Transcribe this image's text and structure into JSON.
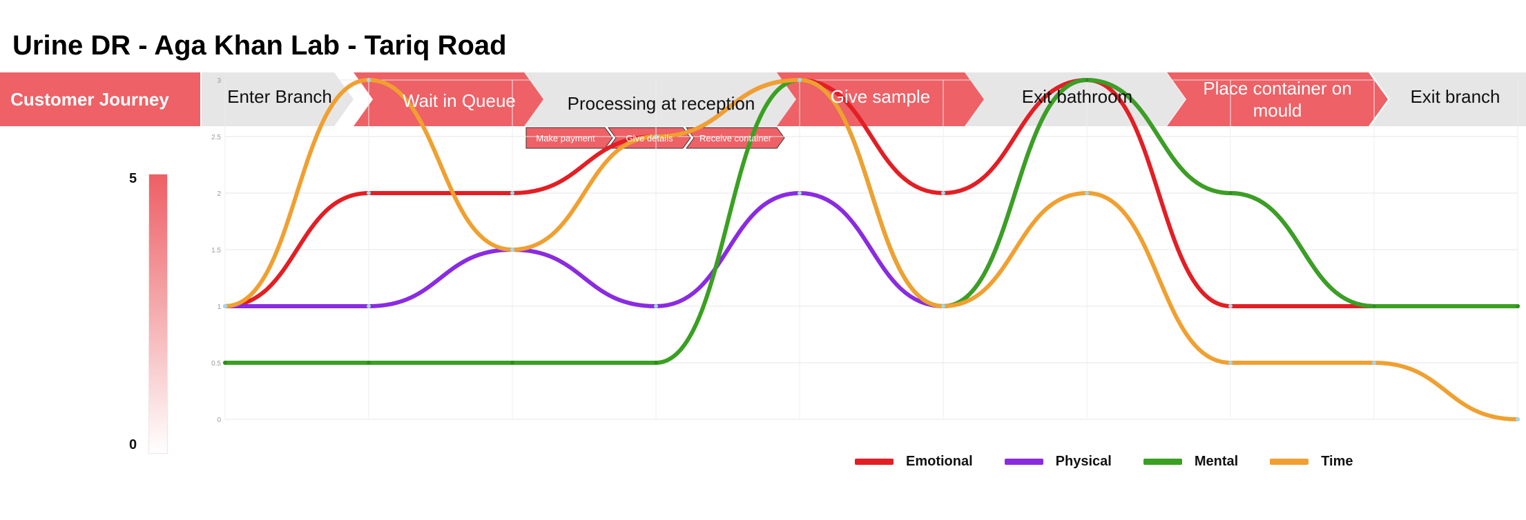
{
  "title": "Urine DR - Aga Khan Lab - Tariq Road",
  "journey": {
    "header_label": "Customer Journey",
    "stages": [
      {
        "label": "Enter Branch",
        "style": "grey"
      },
      {
        "label": "Wait in Queue",
        "style": "red"
      },
      {
        "label": "Processing at reception",
        "style": "grey"
      },
      {
        "label": "Give sample",
        "style": "red"
      },
      {
        "label": "Exit bathroom",
        "style": "grey"
      },
      {
        "label": "Place container on mould",
        "style": "red"
      },
      {
        "label": "Exit branch",
        "style": "grey"
      }
    ],
    "substeps": [
      "Make payment",
      "Give details",
      "Receive container"
    ]
  },
  "scale": {
    "max_label": "5",
    "min_label": "0"
  },
  "colors": {
    "accent_red": "#ee6166",
    "stage_grey": "#e6e6e6",
    "emotional": "#e31e24",
    "physical": "#8a2be2",
    "mental": "#3aa021",
    "time": "#f0a030"
  },
  "chart_data": {
    "type": "line",
    "smooth": true,
    "x": [
      0,
      1,
      2,
      3,
      4,
      5,
      6,
      7,
      8,
      9
    ],
    "yticks": [
      "0",
      "0.5",
      "1",
      "1.5",
      "2",
      "2.5",
      "3"
    ],
    "ylim": [
      0,
      3
    ],
    "grid": true,
    "legend_position": "bottom",
    "series": [
      {
        "name": "Emotional",
        "color": "#e31e24",
        "values": [
          1,
          2,
          2,
          2.5,
          3,
          2,
          3,
          1,
          1,
          1
        ]
      },
      {
        "name": "Physical",
        "color": "#8a2be2",
        "values": [
          1,
          1,
          1.5,
          1,
          2,
          1,
          3,
          2,
          1,
          1
        ]
      },
      {
        "name": "Mental",
        "color": "#3aa021",
        "values": [
          0.5,
          0.5,
          0.5,
          0.5,
          3,
          1,
          3,
          2,
          1,
          1
        ]
      },
      {
        "name": "Time",
        "color": "#f0a030",
        "values": [
          1,
          3,
          1.5,
          2.5,
          3,
          1,
          2,
          0.5,
          0.5,
          0
        ]
      }
    ]
  }
}
